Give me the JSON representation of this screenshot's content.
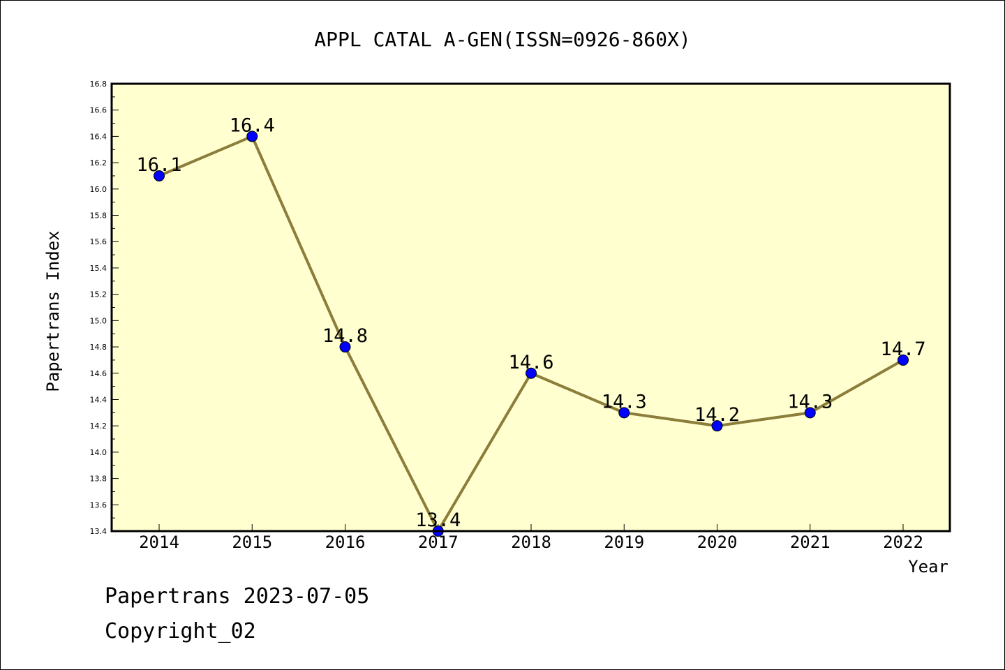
{
  "chart_data": {
    "type": "line",
    "title": "APPL CATAL A-GEN(ISSN=0926-860X)",
    "xlabel": "Year",
    "ylabel": "Papertrans Index",
    "categories": [
      "2014",
      "2015",
      "2016",
      "2017",
      "2018",
      "2019",
      "2020",
      "2021",
      "2022"
    ],
    "values": [
      16.1,
      16.4,
      14.8,
      13.4,
      14.6,
      14.3,
      14.2,
      14.3,
      14.7
    ],
    "data_labels": [
      "16.1",
      "16.4",
      "14.8",
      "13.4",
      "14.6",
      "14.3",
      "14.2",
      "14.3",
      "14.7"
    ],
    "ylim": [
      13.4,
      16.8
    ],
    "yticks": [
      "13.4",
      "13.6",
      "13.8",
      "14.0",
      "14.2",
      "14.4",
      "14.6",
      "14.8",
      "15.0",
      "15.2",
      "15.4",
      "15.6",
      "15.8",
      "16.0",
      "16.2",
      "16.4",
      "16.6",
      "16.8"
    ],
    "grid": false,
    "line_color": "#8B7D3A",
    "marker_color": "#0000FF",
    "plot_background": "#FFFFD0"
  },
  "footer": {
    "line1": "Papertrans 2023-07-05",
    "line2": "Copyright_02"
  }
}
